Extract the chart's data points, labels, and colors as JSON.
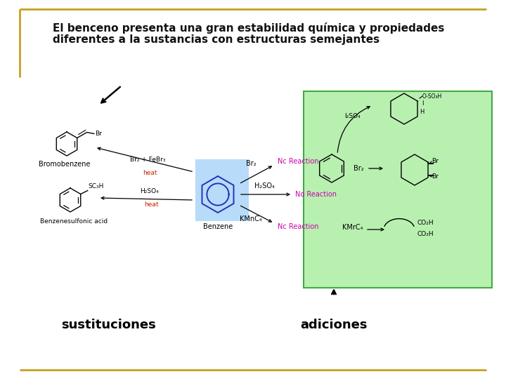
{
  "bg_color": "#ffffff",
  "border_color": "#c8a020",
  "title_line1": "El benceno presenta una gran estabilidad química y propiedades",
  "title_line2": "diferentes a la sustancias con estructuras semejantes",
  "title_fontsize": 11,
  "green_box_color": "#b8f0b0",
  "green_box_border": "#44aa44",
  "light_blue_color": "#b0d8f8",
  "magenta_color": "#cc00aa",
  "red_color": "#cc2200",
  "black_color": "#000000",
  "label_sustituciones": "sustituciones",
  "label_adiciones": "adiciones",
  "label_fontsize": 13
}
